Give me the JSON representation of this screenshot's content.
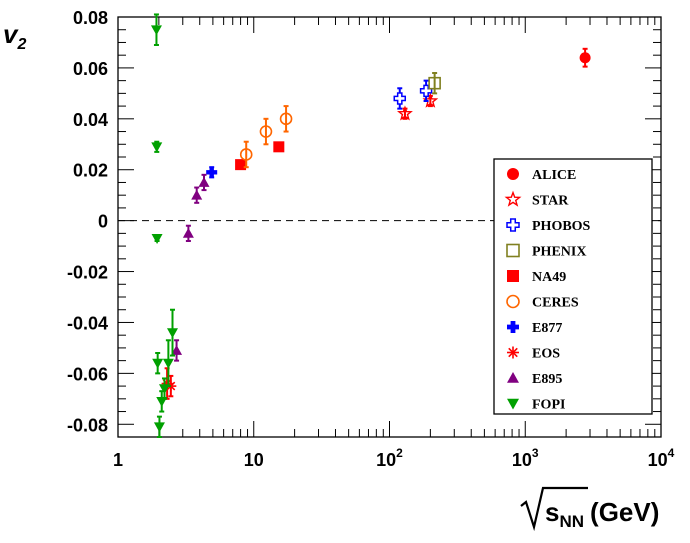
{
  "chart_data": {
    "type": "scatter",
    "title": "",
    "xlabel": "√sNN (GeV)",
    "xlabel_parts": {
      "base": "s",
      "sub": "NN",
      "unit": "(GeV)"
    },
    "ylabel": "v2",
    "ylabel_parts": {
      "base": "v",
      "sub": "2"
    },
    "xscale": "log",
    "xlim": [
      1,
      10000
    ],
    "ylim": [
      -0.085,
      0.08
    ],
    "legend_position": "right",
    "reference_line": {
      "y": 0,
      "style": "dashed"
    },
    "x_ticks": [
      {
        "value": 1,
        "base": "1",
        "exp": ""
      },
      {
        "value": 10,
        "base": "10",
        "exp": ""
      },
      {
        "value": 100,
        "base": "10",
        "exp": "2"
      },
      {
        "value": 1000,
        "base": "10",
        "exp": "3"
      },
      {
        "value": 10000,
        "base": "10",
        "exp": "4"
      }
    ],
    "y_ticks": [
      {
        "value": 0.08,
        "label": "0.08"
      },
      {
        "value": 0.06,
        "label": "0.06"
      },
      {
        "value": 0.04,
        "label": "0.04"
      },
      {
        "value": 0.02,
        "label": "0.02"
      },
      {
        "value": 0,
        "label": "0"
      },
      {
        "value": -0.02,
        "label": "-0.02"
      },
      {
        "value": -0.04,
        "label": "-0.04"
      },
      {
        "value": -0.06,
        "label": "-0.06"
      },
      {
        "value": -0.08,
        "label": "-0.08"
      }
    ],
    "series": [
      {
        "name": "ALICE",
        "marker": "circle-filled",
        "color": "#ff0000",
        "points": [
          {
            "x": 2760,
            "y": 0.064,
            "err": 0.0035
          }
        ]
      },
      {
        "name": "STAR",
        "marker": "star-open",
        "color": "#ff0000",
        "points": [
          {
            "x": 130,
            "y": 0.042,
            "err": 0.002
          },
          {
            "x": 200,
            "y": 0.047,
            "err": 0.002
          }
        ]
      },
      {
        "name": "PHOBOS",
        "marker": "cross-open",
        "color": "#0000ff",
        "points": [
          {
            "x": 119,
            "y": 0.048,
            "err": 0.004
          },
          {
            "x": 186,
            "y": 0.051,
            "err": 0.004
          }
        ]
      },
      {
        "name": "PHENIX",
        "marker": "square-open",
        "color": "#808020",
        "points": [
          {
            "x": 215,
            "y": 0.054,
            "err": 0.004
          }
        ]
      },
      {
        "name": "NA49",
        "marker": "square-filled",
        "color": "#ff0000",
        "points": [
          {
            "x": 8,
            "y": 0.022,
            "err": 0.0
          },
          {
            "x": 15.3,
            "y": 0.029,
            "err": 0.0
          }
        ]
      },
      {
        "name": "CERES",
        "marker": "circle-open",
        "color": "#ff6600",
        "points": [
          {
            "x": 8.8,
            "y": 0.026,
            "err": 0.005
          },
          {
            "x": 12.3,
            "y": 0.035,
            "err": 0.005
          },
          {
            "x": 17.3,
            "y": 0.04,
            "err": 0.005
          }
        ]
      },
      {
        "name": "E877",
        "marker": "cross-filled",
        "color": "#0000ff",
        "points": [
          {
            "x": 4.9,
            "y": 0.019,
            "err": 0.002
          }
        ]
      },
      {
        "name": "EOS",
        "marker": "asterisk",
        "color": "#ff0000",
        "points": [
          {
            "x": 2.3,
            "y": -0.064,
            "err": 0.006
          },
          {
            "x": 2.45,
            "y": -0.065,
            "err": 0.004
          }
        ]
      },
      {
        "name": "E895",
        "marker": "triangle-up-filled",
        "color": "#800080",
        "points": [
          {
            "x": 2.7,
            "y": -0.051,
            "err": 0.004
          },
          {
            "x": 3.3,
            "y": -0.005,
            "err": 0.003
          },
          {
            "x": 3.8,
            "y": 0.01,
            "err": 0.003
          },
          {
            "x": 4.3,
            "y": 0.015,
            "err": 0.003
          }
        ]
      },
      {
        "name": "FOPI",
        "marker": "triangle-down-filled",
        "color": "#00a000",
        "points": [
          {
            "x": 1.92,
            "y": 0.075,
            "err": 0.006
          },
          {
            "x": 1.93,
            "y": 0.029,
            "err": 0.002
          },
          {
            "x": 1.94,
            "y": -0.007,
            "err": 0.001
          },
          {
            "x": 1.96,
            "y": -0.056,
            "err": 0.004
          },
          {
            "x": 2.02,
            "y": -0.081,
            "err": 0.004
          },
          {
            "x": 2.1,
            "y": -0.071,
            "err": 0.004
          },
          {
            "x": 2.2,
            "y": -0.066,
            "err": 0.004
          },
          {
            "x": 2.35,
            "y": -0.056,
            "err": 0.009
          },
          {
            "x": 2.52,
            "y": -0.044,
            "err": 0.009
          }
        ]
      }
    ]
  }
}
